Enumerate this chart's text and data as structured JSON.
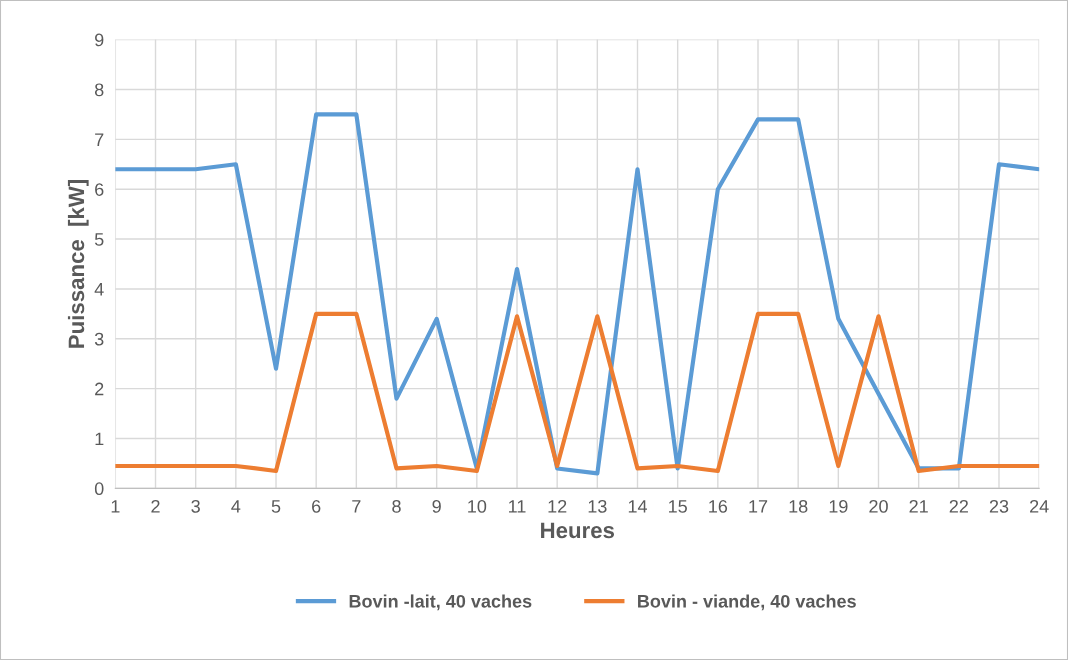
{
  "chart_data": {
    "type": "line",
    "xlabel": "Heures",
    "ylabel": "Puissance  [kW]",
    "x": [
      1,
      2,
      3,
      4,
      5,
      6,
      7,
      8,
      9,
      10,
      11,
      12,
      13,
      14,
      15,
      16,
      17,
      18,
      19,
      20,
      21,
      22,
      23,
      24
    ],
    "xlim": [
      1,
      24
    ],
    "xticks": [
      1,
      2,
      3,
      4,
      5,
      6,
      7,
      8,
      9,
      10,
      11,
      12,
      13,
      14,
      15,
      16,
      17,
      18,
      19,
      20,
      21,
      22,
      23,
      24
    ],
    "ylim": [
      0,
      9
    ],
    "yticks": [
      0,
      1,
      2,
      3,
      4,
      5,
      6,
      7,
      8,
      9
    ],
    "grid": true,
    "legend": "bottom",
    "marker": "none",
    "line_style": "solid",
    "series": [
      {
        "name": "Bovin -lait, 40 vaches",
        "color": "#5b9bd5",
        "values": [
          6.4,
          6.4,
          6.4,
          6.5,
          2.4,
          7.5,
          7.5,
          1.8,
          3.4,
          0.4,
          4.4,
          0.4,
          0.3,
          6.4,
          0.4,
          6.0,
          7.4,
          7.4,
          3.4,
          1.9,
          0.4,
          0.4,
          6.5,
          6.4
        ]
      },
      {
        "name": "Bovin - viande, 40 vaches",
        "color": "#ed7d31",
        "values": [
          0.45,
          0.45,
          0.45,
          0.45,
          0.35,
          3.5,
          3.5,
          0.4,
          0.45,
          0.35,
          3.45,
          0.45,
          3.45,
          0.4,
          0.45,
          0.35,
          3.5,
          3.5,
          0.45,
          3.45,
          0.35,
          0.45,
          0.45,
          0.45
        ]
      }
    ]
  }
}
